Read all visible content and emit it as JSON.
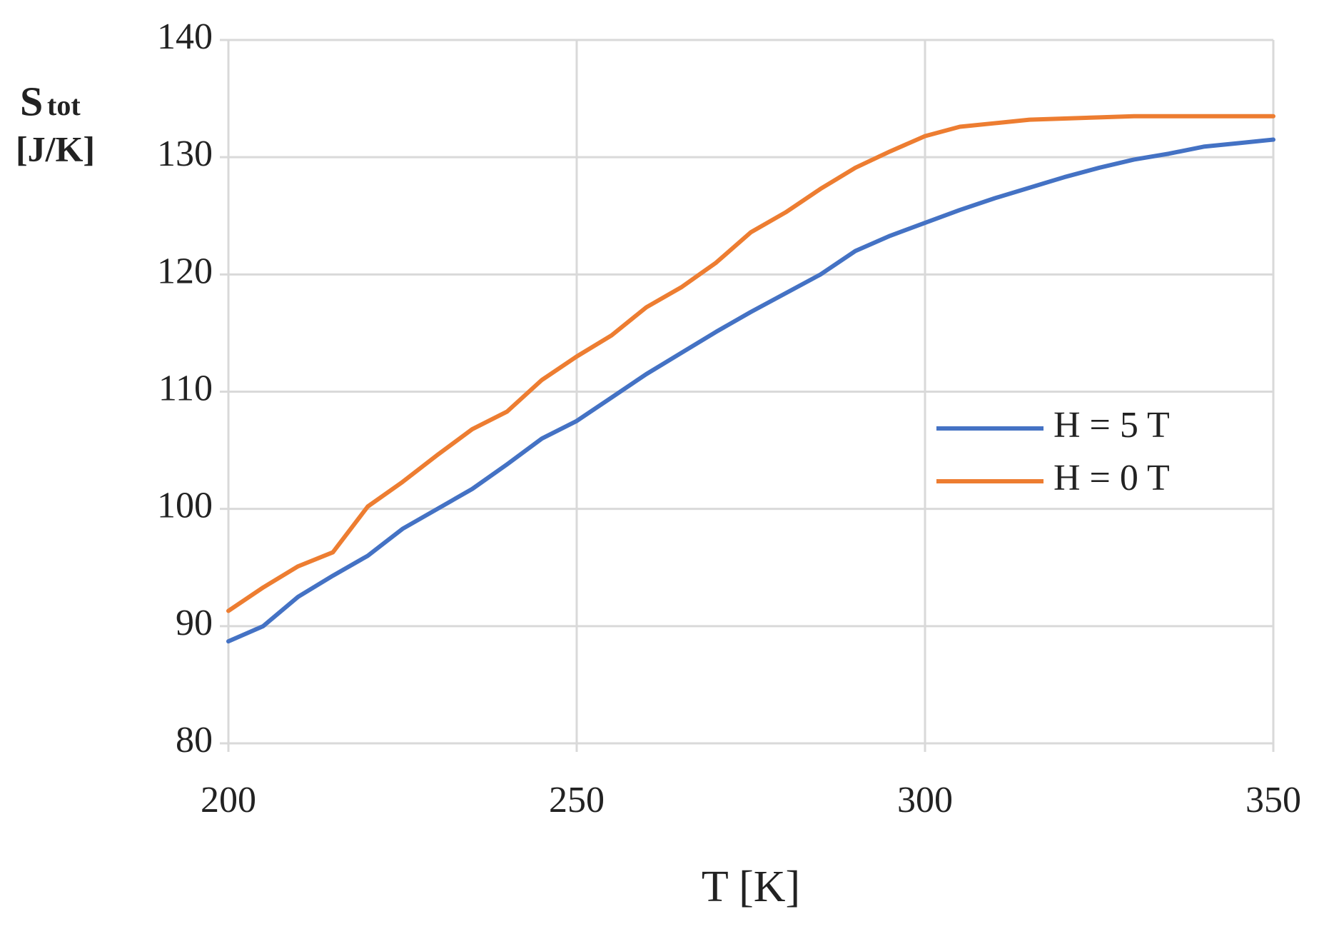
{
  "chart_data": {
    "type": "line",
    "xlabel": "T [K]",
    "ylabel": {
      "symbol": "S",
      "subscript": "tot",
      "unit": "[J/K]"
    },
    "x": [
      200,
      205,
      210,
      215,
      220,
      225,
      230,
      235,
      240,
      245,
      250,
      255,
      260,
      265,
      270,
      275,
      280,
      285,
      290,
      295,
      300,
      305,
      310,
      315,
      320,
      325,
      330,
      335,
      340,
      345,
      350
    ],
    "series": [
      {
        "name": "H = 5 T",
        "color": "#4472c4",
        "values": [
          88.7,
          90,
          92.5,
          94.3,
          96,
          98.3,
          100,
          101.7,
          103.8,
          106,
          107.5,
          109.5,
          111.5,
          113.3,
          115.1,
          116.8,
          118.4,
          120,
          122,
          123.3,
          124.4,
          125.5,
          126.5,
          127.4,
          128.3,
          129.1,
          129.8,
          130.3,
          130.9,
          131.2,
          131.5
        ]
      },
      {
        "name": "H = 0 T",
        "color": "#ed7d31",
        "values": [
          91.3,
          93.3,
          95.1,
          96.3,
          100.2,
          102.3,
          104.6,
          106.8,
          108.3,
          111,
          113,
          114.8,
          117.2,
          118.9,
          121,
          123.6,
          125.3,
          127.3,
          129.1,
          130.5,
          131.8,
          132.6,
          132.9,
          133.2,
          133.3,
          133.4,
          133.5,
          133.5,
          133.5,
          133.5,
          133.5
        ]
      }
    ],
    "xlim": [
      200,
      350
    ],
    "xticks": [
      200,
      250,
      300,
      350
    ],
    "ylim": [
      80,
      140
    ],
    "yticks": [
      80,
      90,
      100,
      110,
      120,
      130,
      140
    ],
    "grid": true,
    "legend": "right"
  }
}
